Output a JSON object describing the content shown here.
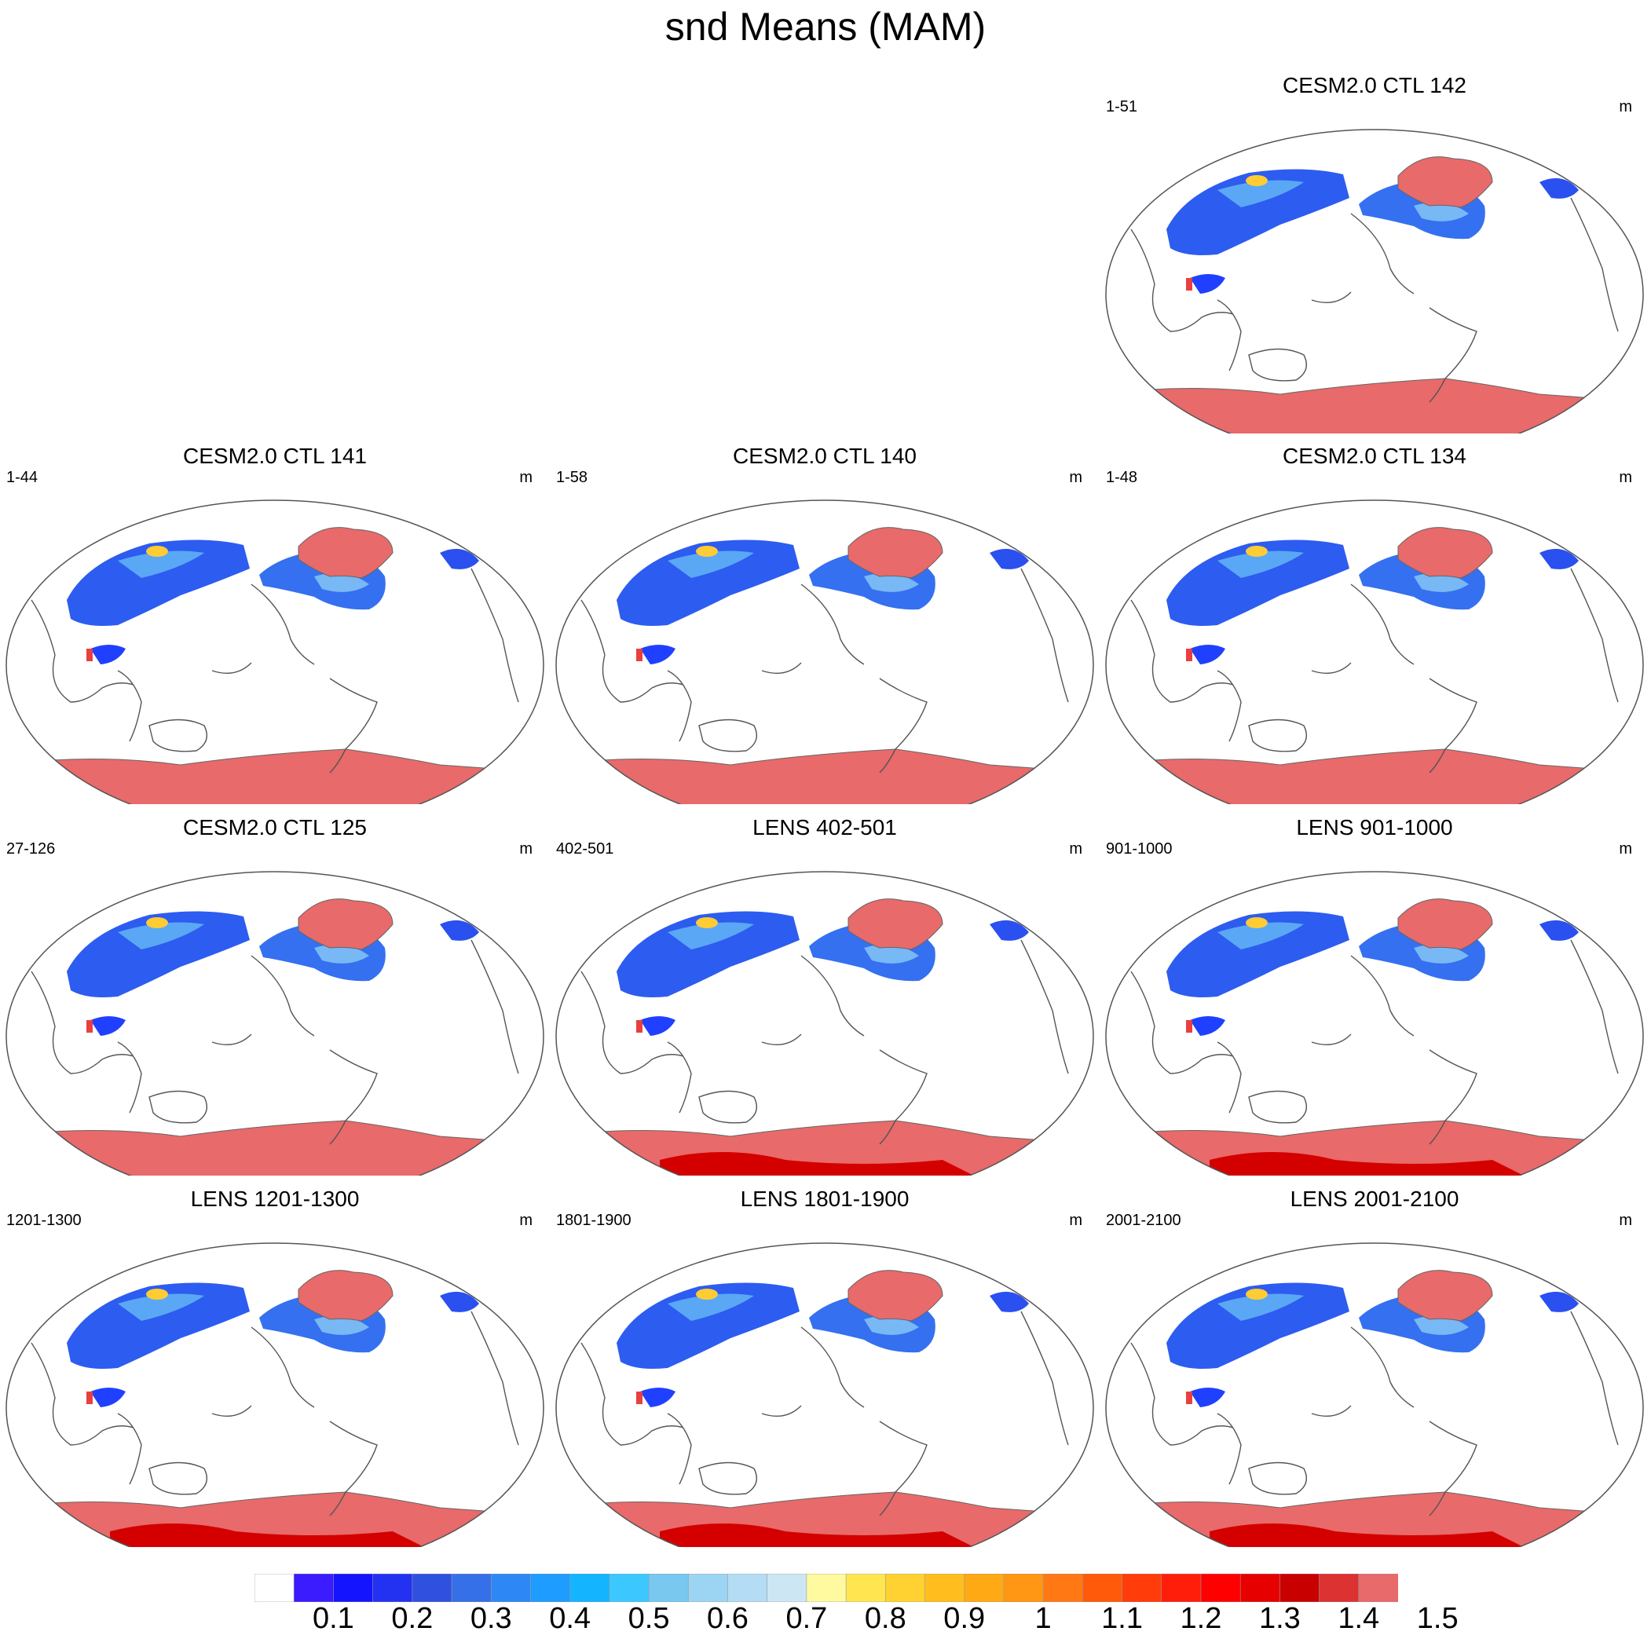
{
  "title": "snd Means (MAM)",
  "panels": [
    {
      "title": "CESM2.0 CTL 142",
      "left_label": "1-51",
      "right_label": "m",
      "style": "ctl"
    },
    {
      "title": "CESM2.0 CTL 141",
      "left_label": "1-44",
      "right_label": "m",
      "style": "ctl"
    },
    {
      "title": "CESM2.0 CTL 140",
      "left_label": "1-58",
      "right_label": "m",
      "style": "ctl"
    },
    {
      "title": "CESM2.0 CTL 134",
      "left_label": "1-48",
      "right_label": "m",
      "style": "ctl"
    },
    {
      "title": "CESM2.0 CTL 125",
      "left_label": "27-126",
      "right_label": "m",
      "style": "ctl"
    },
    {
      "title": "LENS 402-501",
      "left_label": "402-501",
      "right_label": "m",
      "style": "lens"
    },
    {
      "title": "LENS 901-1000",
      "left_label": "901-1000",
      "right_label": "m",
      "style": "lens"
    },
    {
      "title": "LENS 1201-1300",
      "left_label": "1201-1300",
      "right_label": "m",
      "style": "lens"
    },
    {
      "title": "LENS 1801-1900",
      "left_label": "1801-1900",
      "right_label": "m",
      "style": "lens"
    },
    {
      "title": "LENS 2001-2100",
      "left_label": "2001-2100",
      "right_label": "m",
      "style": "lens"
    }
  ],
  "colorbar": {
    "labels": [
      "0.1",
      "0.2",
      "0.3",
      "0.4",
      "0.5",
      "0.6",
      "0.7",
      "0.8",
      "0.9",
      "1",
      "1.1",
      "1.2",
      "1.3",
      "1.4",
      "1.5"
    ],
    "colors": [
      "#ffffff",
      "#3a1cff",
      "#1414ff",
      "#2332f0",
      "#3050e0",
      "#3670e8",
      "#2d88f5",
      "#1e9cff",
      "#14b4ff",
      "#3cc8ff",
      "#78c8f0",
      "#9cd4f4",
      "#b4dcf4",
      "#cce6f4",
      "#fffaa0",
      "#ffe650",
      "#ffd232",
      "#ffbe1e",
      "#ffaa14",
      "#ff9614",
      "#ff7814",
      "#ff5a0a",
      "#ff3c0a",
      "#ff1e0a",
      "#ff0000",
      "#e60000",
      "#c80000",
      "#dc3232",
      "#e86a6a"
    ]
  }
}
